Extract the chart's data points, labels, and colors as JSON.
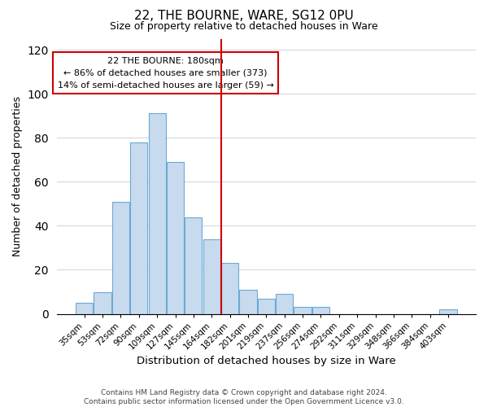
{
  "title": "22, THE BOURNE, WARE, SG12 0PU",
  "subtitle": "Size of property relative to detached houses in Ware",
  "xlabel": "Distribution of detached houses by size in Ware",
  "ylabel": "Number of detached properties",
  "categories": [
    "35sqm",
    "53sqm",
    "72sqm",
    "90sqm",
    "109sqm",
    "127sqm",
    "145sqm",
    "164sqm",
    "182sqm",
    "201sqm",
    "219sqm",
    "237sqm",
    "256sqm",
    "274sqm",
    "292sqm",
    "311sqm",
    "329sqm",
    "348sqm",
    "366sqm",
    "384sqm",
    "403sqm"
  ],
  "values": [
    5,
    10,
    51,
    78,
    91,
    69,
    44,
    34,
    23,
    11,
    7,
    9,
    3,
    3,
    0,
    0,
    0,
    0,
    0,
    0,
    2
  ],
  "bar_color": "#c8daee",
  "bar_edge_color": "#6aaad4",
  "vline_color": "#cc0000",
  "vline_index": 8,
  "ylim": [
    0,
    125
  ],
  "yticks": [
    0,
    20,
    40,
    60,
    80,
    100,
    120
  ],
  "annotation_title": "22 THE BOURNE: 180sqm",
  "annotation_line1": "← 86% of detached houses are smaller (373)",
  "annotation_line2": "14% of semi-detached houses are larger (59) →",
  "annotation_box_color": "#ffffff",
  "annotation_box_edge": "#cc0000",
  "footer_line1": "Contains HM Land Registry data © Crown copyright and database right 2024.",
  "footer_line2": "Contains public sector information licensed under the Open Government Licence v3.0.",
  "background_color": "#ffffff",
  "grid_color": "#d0d8e4"
}
